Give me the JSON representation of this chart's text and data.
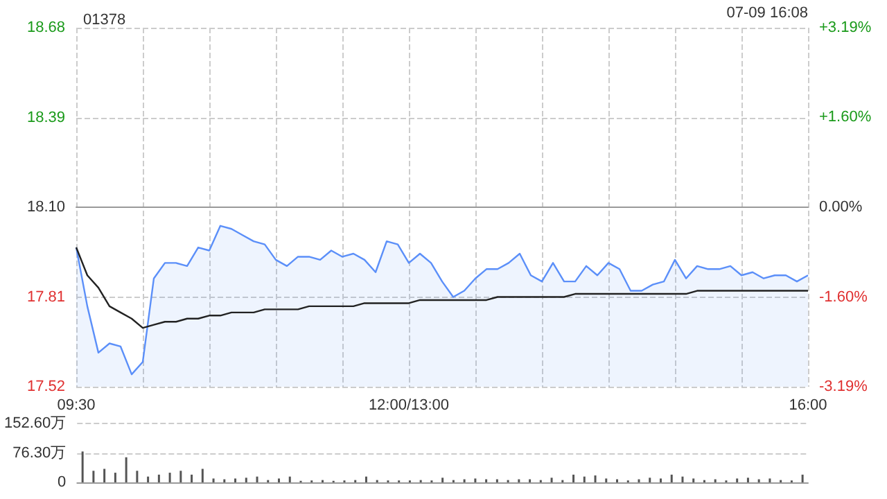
{
  "chart_data": [
    {
      "type": "line",
      "title": "01378",
      "annotations": [
        "07-09 16:08"
      ],
      "categories": [
        "09:30",
        null,
        null,
        null,
        null,
        null,
        null,
        null,
        null,
        null,
        null,
        null,
        null,
        null,
        null,
        null,
        null,
        null,
        null,
        null,
        null,
        null,
        null,
        null,
        null,
        null,
        null,
        null,
        null,
        null,
        "12:00/13:00",
        null,
        null,
        null,
        null,
        null,
        null,
        null,
        null,
        null,
        null,
        null,
        null,
        null,
        null,
        null,
        null,
        null,
        null,
        null,
        null,
        null,
        null,
        null,
        null,
        null,
        null,
        null,
        null,
        null,
        null,
        null,
        null,
        null,
        null,
        null,
        "16:00"
      ],
      "series": [
        {
          "type": "area",
          "color": "#5b8ff9",
          "values": [
            17.97,
            17.78,
            17.63,
            17.66,
            17.65,
            17.56,
            17.6,
            17.87,
            17.92,
            17.92,
            17.91,
            17.97,
            17.96,
            18.04,
            18.03,
            18.01,
            17.99,
            17.98,
            17.93,
            17.91,
            17.94,
            17.94,
            17.93,
            17.96,
            17.94,
            17.95,
            17.93,
            17.89,
            17.99,
            17.98,
            17.92,
            17.95,
            17.92,
            17.86,
            17.81,
            17.83,
            17.87,
            17.9,
            17.9,
            17.92,
            17.95,
            17.88,
            17.86,
            17.92,
            17.86,
            17.86,
            17.91,
            17.88,
            17.92,
            17.9,
            17.83,
            17.83,
            17.85,
            17.86,
            17.93,
            17.87,
            17.91,
            17.9,
            17.9,
            17.91,
            17.88,
            17.89,
            17.87,
            17.88,
            17.88,
            17.86,
            17.88
          ]
        },
        {
          "type": "line",
          "color": "#222222",
          "values": [
            17.97,
            17.88,
            17.84,
            17.78,
            17.76,
            17.74,
            17.71,
            17.72,
            17.73,
            17.73,
            17.74,
            17.74,
            17.75,
            17.75,
            17.76,
            17.76,
            17.76,
            17.77,
            17.77,
            17.77,
            17.77,
            17.78,
            17.78,
            17.78,
            17.78,
            17.78,
            17.79,
            17.79,
            17.79,
            17.79,
            17.79,
            17.8,
            17.8,
            17.8,
            17.8,
            17.8,
            17.8,
            17.8,
            17.81,
            17.81,
            17.81,
            17.81,
            17.81,
            17.81,
            17.81,
            17.82,
            17.82,
            17.82,
            17.82,
            17.82,
            17.82,
            17.82,
            17.82,
            17.82,
            17.82,
            17.82,
            17.83,
            17.83,
            17.83,
            17.83,
            17.83,
            17.83,
            17.83,
            17.83,
            17.83,
            17.83,
            17.83
          ]
        }
      ],
      "ylim": [
        17.52,
        18.68
      ],
      "yticks": [
        17.52,
        17.81,
        {
          "value": 18.1,
          "label": "18.10"
        },
        18.39,
        18.68
      ],
      "y2lim": [
        -3.19,
        3.19
      ],
      "y2ticks": [
        {
          "value": -3.19,
          "label": "-3.19%"
        },
        {
          "value": -1.6,
          "label": "-1.60%"
        },
        {
          "value": 0,
          "label": "0.00%"
        },
        {
          "value": 1.6,
          "label": "+1.60%"
        },
        {
          "value": 3.19,
          "label": "+3.19%"
        }
      ],
      "grid": true,
      "marker": "none",
      "line_style": "solid"
    },
    {
      "type": "bar",
      "color": "#555555",
      "tick_labels": "y",
      "grid": "y",
      "categories": [
        null,
        null,
        null,
        null,
        null,
        null,
        null,
        null,
        null,
        null,
        null,
        null,
        null,
        null,
        null,
        null,
        null,
        null,
        null,
        null,
        null,
        null,
        null,
        null,
        null,
        null,
        null,
        null,
        null,
        null,
        null,
        null,
        null,
        null,
        null,
        null,
        null,
        null,
        null,
        null,
        null,
        null,
        null,
        null,
        null,
        null,
        null,
        null,
        null,
        null,
        null,
        null,
        null,
        null,
        null,
        null,
        null,
        null,
        null,
        null,
        null,
        null,
        null,
        null,
        null,
        null,
        null
      ],
      "values": [
        80,
        30,
        35,
        25,
        65,
        30,
        15,
        20,
        25,
        30,
        20,
        35,
        10,
        8,
        10,
        12,
        15,
        6,
        10,
        15,
        4,
        5,
        6,
        4,
        5,
        6,
        15,
        6,
        5,
        5,
        5,
        6,
        5,
        12,
        6,
        8,
        10,
        8,
        8,
        6,
        8,
        8,
        6,
        12,
        6,
        20,
        15,
        18,
        10,
        8,
        5,
        8,
        12,
        10,
        20,
        15,
        10,
        6,
        8,
        5,
        10,
        12,
        8,
        10,
        6,
        5,
        20
      ],
      "ylim": [
        0,
        152.6
      ],
      "yticks": [
        0,
        {
          "value": 76.3,
          "label": "76.30万"
        },
        {
          "value": 152.6,
          "label": "152.60万"
        }
      ]
    }
  ]
}
